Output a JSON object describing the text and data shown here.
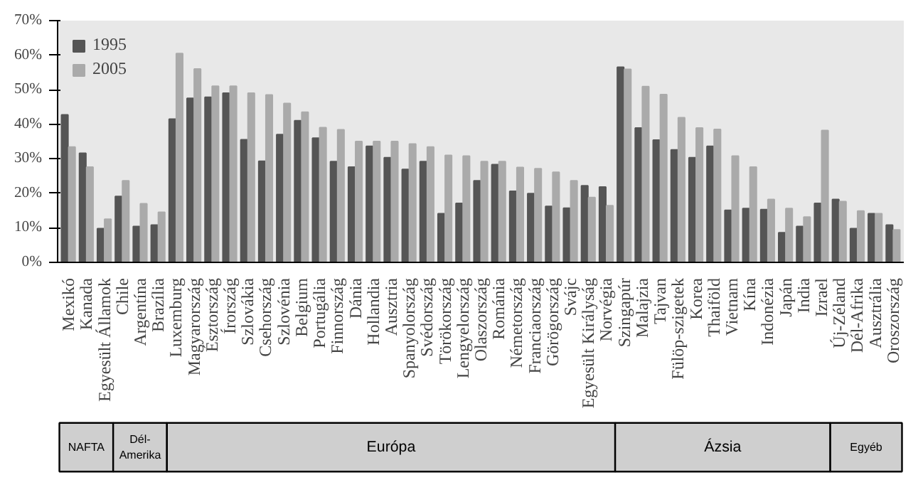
{
  "chart_data": {
    "type": "bar",
    "categories": [
      "Mexikó",
      "Kanada",
      "Egyesült Államok",
      "Chile",
      "Argentína",
      "Brazília",
      "Luxemburg",
      "Magyarország",
      "Észtország",
      "Írország",
      "Szlovákia",
      "Csehország",
      "Szlovénia",
      "Belgium",
      "Portugália",
      "Finnország",
      "Dánia",
      "Hollandia",
      "Ausztria",
      "Spanyolország",
      "Svédország",
      "Törökország",
      "Lengyelország",
      "Olaszország",
      "Románia",
      "Németország",
      "Franciaország",
      "Görögország",
      "Svájc",
      "Egyesült Királyság",
      "Norvégia",
      "Szingapúr",
      "Malajzia",
      "Tajvan",
      "Fülöp-szigetek",
      "Korea",
      "Thaiföld",
      "Vietnam",
      "Kína",
      "Indonézia",
      "Japán",
      "India",
      "Izrael",
      "Új-Zéland",
      "Dél-Afrika",
      "Ausztrália",
      "Oroszország"
    ],
    "series": [
      {
        "name": "1995",
        "color": "#555555",
        "values": [
          42.7,
          31.6,
          9.8,
          19.1,
          10.4,
          10.8,
          41.5,
          47.5,
          47.8,
          49,
          35.5,
          29.3,
          37,
          41,
          36,
          29.2,
          27.6,
          33.6,
          30.3,
          26.9,
          29.2,
          14.1,
          17.1,
          23.6,
          28.3,
          20.6,
          19.9,
          16.2,
          15.7,
          22.2,
          21.8,
          56.5,
          38.9,
          35.4,
          32.6,
          30.3,
          33.6,
          15.1,
          15.6,
          15.3,
          8.6,
          10.4,
          17.1,
          18.2,
          9.8,
          14.1,
          10.8
        ]
      },
      {
        "name": "2005",
        "color": "#aaaaaa",
        "values": [
          33.4,
          27.6,
          12.5,
          23.6,
          17,
          14.5,
          60.5,
          56,
          51,
          51,
          49,
          48.5,
          46,
          43.5,
          39,
          38.4,
          35,
          35,
          35,
          34.3,
          33.4,
          31,
          30.8,
          29.2,
          29.2,
          27.5,
          27.1,
          26.1,
          23.6,
          18.8,
          16.4,
          55.9,
          50.9,
          48.6,
          41.9,
          38.9,
          38.5,
          30.8,
          27.6,
          18.2,
          15.6,
          13.1,
          38.2,
          17.6,
          14.9,
          14.1,
          9.4
        ]
      }
    ],
    "ylim": [
      0,
      70
    ],
    "yticks": [
      {
        "value": 0,
        "label": "0%"
      },
      {
        "value": 10,
        "label": "10%"
      },
      {
        "value": 20,
        "label": "20%"
      },
      {
        "value": 30,
        "label": "30%"
      },
      {
        "value": 40,
        "label": "40%"
      },
      {
        "value": 50,
        "label": "50%"
      },
      {
        "value": 60,
        "label": "60%"
      },
      {
        "value": 70,
        "label": "70%"
      }
    ],
    "legend": "top left",
    "annotations": [
      "NAFTA",
      "Dél-Amerika",
      "Európa",
      "Ázsia",
      "Egyéb"
    ]
  }
}
